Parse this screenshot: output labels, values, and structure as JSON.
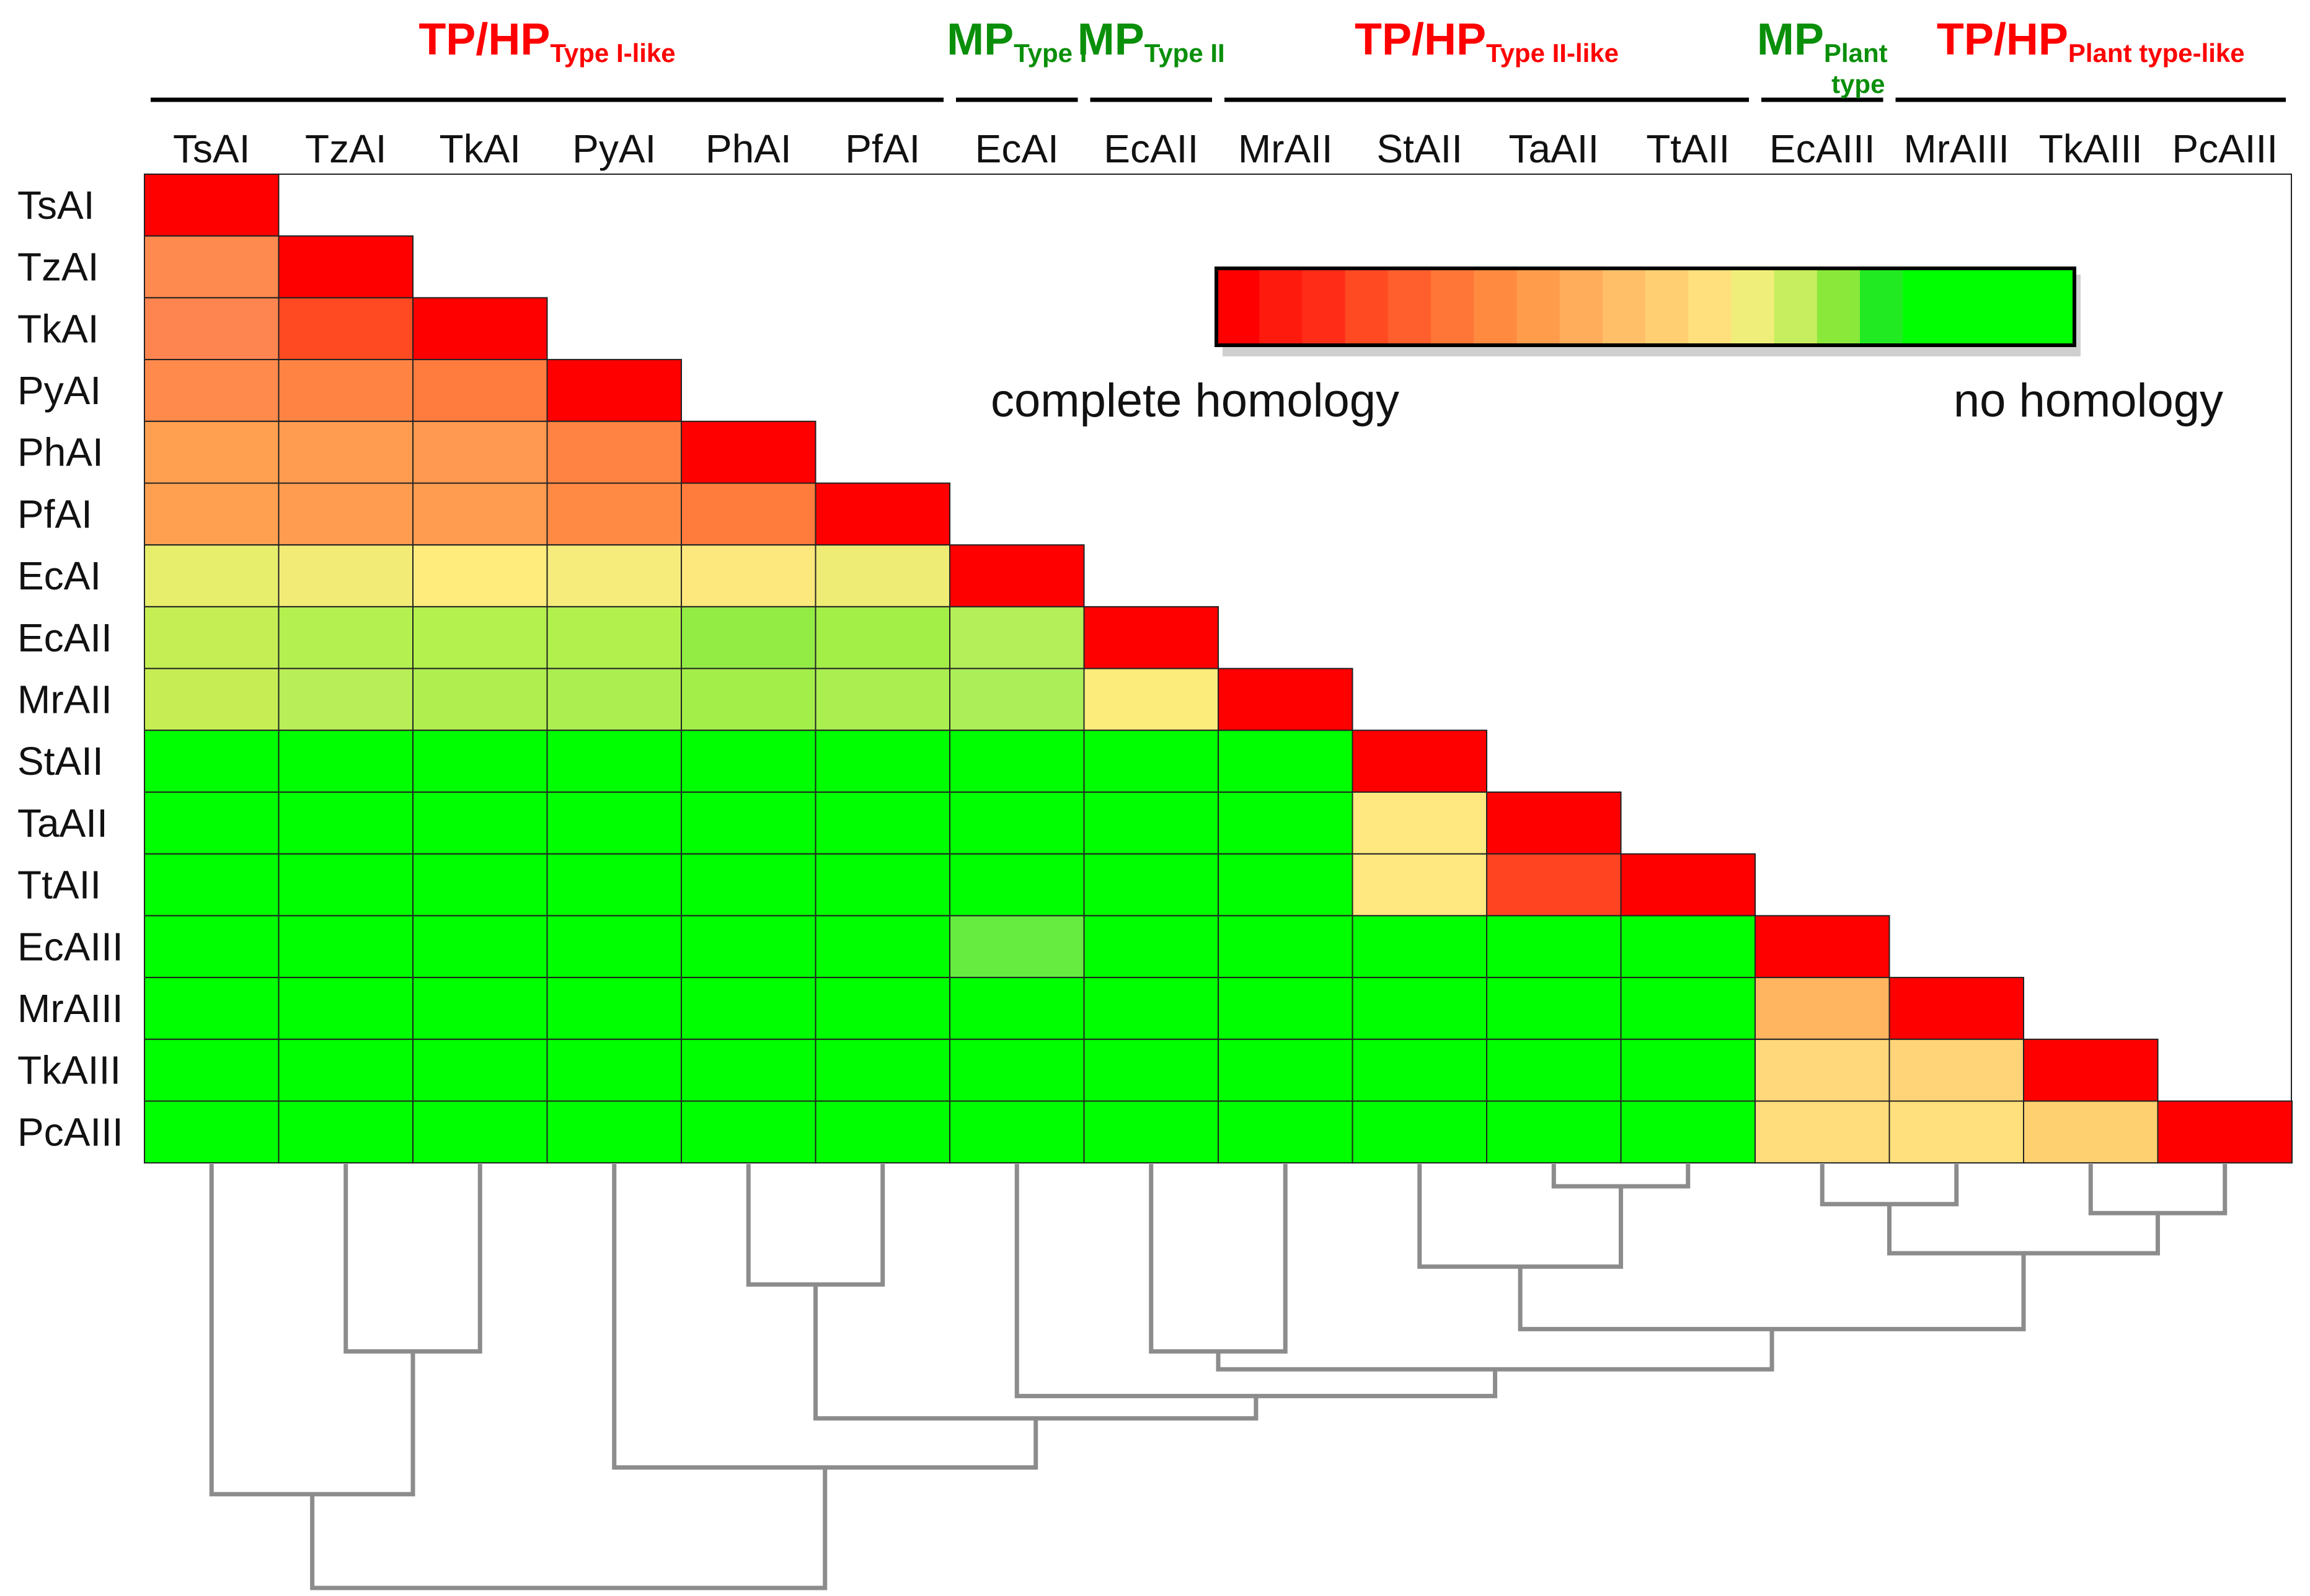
{
  "chart_data": {
    "type": "heatmap",
    "title": "",
    "scale": {
      "low_label": "complete homology",
      "high_label": "no homology"
    },
    "labels": [
      "TsAI",
      "TzAI",
      "TkAI",
      "PyAI",
      "PhAI",
      "PfAI",
      "EcAI",
      "EcAII",
      "MrAII",
      "StAII",
      "TaAII",
      "TtAII",
      "EcAIII",
      "MrAIII",
      "TkAIII",
      "PcAIII"
    ],
    "groups": [
      {
        "main": "TP/HP",
        "sub": "Type I-like",
        "color": "#ff0000",
        "members": [
          "TsAI",
          "TzAI",
          "TkAI",
          "PyAI",
          "PhAI",
          "PfAI"
        ]
      },
      {
        "main": "MP",
        "sub": "Type I",
        "color": "#0a8f0a",
        "members": [
          "EcAI"
        ]
      },
      {
        "main": "MP",
        "sub": "Type II",
        "color": "#0a8f0a",
        "members": [
          "EcAII"
        ]
      },
      {
        "main": "TP/HP",
        "sub": "Type II-like",
        "color": "#ff0000",
        "members": [
          "MrAII",
          "StAII",
          "TaAII",
          "TtAII"
        ]
      },
      {
        "main": "MP",
        "sub": "Plant type",
        "color": "#0a8f0a",
        "members": [
          "EcAIII"
        ]
      },
      {
        "main": "TP/HP",
        "sub": "Plant type-like",
        "color": "#ff0000",
        "members": [
          "MrAIII",
          "TkAIII",
          "PcAIII"
        ]
      }
    ],
    "color_scale": [
      "#ff0000",
      "#ff1a0e",
      "#ff2d18",
      "#ff4a22",
      "#ff5f2c",
      "#ff7636",
      "#ff8a40",
      "#ff9c4c",
      "#ffad5a",
      "#ffbf68",
      "#ffcf72",
      "#ffe07c",
      "#f0ee7a",
      "#c6ee5e",
      "#8ae83a",
      "#22ea22",
      "#00ff00",
      "#00ff00",
      "#00ff00",
      "#00ff00"
    ],
    "matrix": [
      [
        "#ff0000"
      ],
      [
        "#ff8a50",
        "#ff0000"
      ],
      [
        "#ff8550",
        "#ff4a22",
        "#ff0000"
      ],
      [
        "#ff8a4c",
        "#ff8444",
        "#ff7c3e",
        "#ff0000"
      ],
      [
        "#ffa050",
        "#ff9c50",
        "#ff9850",
        "#ff8444",
        "#ff0000"
      ],
      [
        "#ffa050",
        "#ff9c50",
        "#ff9c50",
        "#ff8a44",
        "#ff7c3c",
        "#ff0000"
      ],
      [
        "#e6ee6c",
        "#f2ec76",
        "#ffec7c",
        "#f6ec7c",
        "#fce87c",
        "#eeec74",
        "#ff0000"
      ],
      [
        "#c4ee54",
        "#b4f050",
        "#b4f04e",
        "#b2f04e",
        "#92ec44",
        "#a4ee48",
        "#b4ee58",
        "#ff0000"
      ],
      [
        "#c6ee54",
        "#b8ee58",
        "#b0ee50",
        "#acee50",
        "#a4ee4a",
        "#aaee50",
        "#acee58",
        "#fcec7c",
        "#ff0000"
      ],
      [
        "#00ff00",
        "#00ff00",
        "#00ff00",
        "#00ff00",
        "#00ff00",
        "#00ff00",
        "#00ff00",
        "#00ff00",
        "#00ff00",
        "#ff0000"
      ],
      [
        "#00ff00",
        "#00ff00",
        "#00ff00",
        "#00ff00",
        "#00ff00",
        "#00ff00",
        "#00ff00",
        "#00ff00",
        "#00ff00",
        "#ffe880",
        "#ff0000"
      ],
      [
        "#00ff00",
        "#00ff00",
        "#00ff00",
        "#00ff00",
        "#00ff00",
        "#00ff00",
        "#00ff00",
        "#00ff00",
        "#00ff00",
        "#ffe880",
        "#ff4422",
        "#ff0000"
      ],
      [
        "#00ff00",
        "#00ff00",
        "#00ff00",
        "#00ff00",
        "#00ff00",
        "#00ff00",
        "#66ec40",
        "#00ff00",
        "#00ff00",
        "#00ff00",
        "#00ff00",
        "#00ff00",
        "#ff0000"
      ],
      [
        "#00ff00",
        "#00ff00",
        "#00ff00",
        "#00ff00",
        "#00ff00",
        "#00ff00",
        "#00ff00",
        "#00ff00",
        "#00ff00",
        "#00ff00",
        "#00ff00",
        "#00ff00",
        "#ffb460",
        "#ff0000"
      ],
      [
        "#00ff00",
        "#00ff00",
        "#00ff00",
        "#00ff00",
        "#00ff00",
        "#00ff00",
        "#00ff00",
        "#00ff00",
        "#00ff00",
        "#00ff00",
        "#00ff00",
        "#00ff00",
        "#ffd87c",
        "#ffd478",
        "#ff0000"
      ],
      [
        "#00ff00",
        "#00ff00",
        "#00ff00",
        "#00ff00",
        "#00ff00",
        "#00ff00",
        "#00ff00",
        "#00ff00",
        "#00ff00",
        "#00ff00",
        "#00ff00",
        "#00ff00",
        "#ffdc7c",
        "#ffe07c",
        "#ffd070",
        "#ff0000"
      ]
    ],
    "dendrogram": {
      "merges": [
        {
          "a": "TzAI",
          "b": "TkAI",
          "h": 0.42
        },
        {
          "a": "PhAI",
          "b": "PfAI",
          "h": 0.27
        },
        {
          "a": "EcAII",
          "b": "MrAII",
          "h": 0.42
        },
        {
          "a": "TaAII",
          "b": "TtAII",
          "h": 0.05
        },
        {
          "a": "EcAIII",
          "b": "MrAIII",
          "h": 0.09
        },
        {
          "a": "TkAIII",
          "b": "PcAIII",
          "h": 0.11
        },
        {
          "a": "StAII",
          "b": "n4",
          "h": 0.23
        },
        {
          "a": "n5",
          "b": "n6",
          "h": 0.2
        },
        {
          "a": "n7",
          "b": "n8",
          "h": 0.37
        },
        {
          "a": "n3",
          "b": "n9",
          "h": 0.46
        },
        {
          "a": "EcAI",
          "b": "n10",
          "h": 0.52
        },
        {
          "a": "n2",
          "b": "n11",
          "h": 0.57
        },
        {
          "a": "PyAI",
          "b": "n12",
          "h": 0.68
        },
        {
          "a": "TsAI",
          "b": "n1",
          "h": 0.74
        },
        {
          "a": "n14",
          "b": "n13",
          "h": 0.95
        }
      ]
    }
  }
}
